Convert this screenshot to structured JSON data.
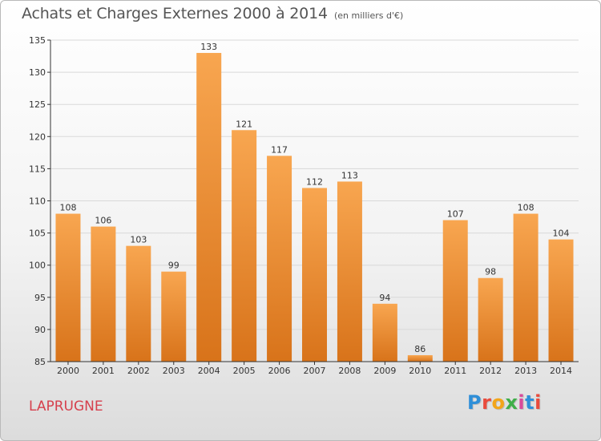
{
  "header": {
    "title": "Achats et Charges Externes 2000 à 2014",
    "subtitle": "(en milliers d'€)"
  },
  "footer": {
    "commune": "LAPRUGNE",
    "logo_letters": [
      "P",
      "r",
      "o",
      "x",
      "i",
      "t",
      "i"
    ],
    "logo_colors": [
      "#2f8fd8",
      "#e94b3c",
      "#f2a51a",
      "#3fae49",
      "#d84a9b",
      "#2f8fd8",
      "#e94b3c"
    ]
  },
  "colors": {
    "bar_top": "#f8a650",
    "bar_bottom": "#d8731a",
    "grid": "#d9d9d9",
    "axis": "#333333",
    "text": "#333333"
  },
  "chart_data": {
    "type": "bar",
    "title": "Achats et Charges Externes 2000 à 2014",
    "subtitle": "(en milliers d'€)",
    "xlabel": "",
    "ylabel": "",
    "categories": [
      "2000",
      "2001",
      "2002",
      "2003",
      "2004",
      "2005",
      "2006",
      "2007",
      "2008",
      "2009",
      "2010",
      "2011",
      "2012",
      "2013",
      "2014"
    ],
    "values": [
      108,
      106,
      103,
      99,
      133,
      121,
      117,
      112,
      113,
      94,
      86,
      107,
      98,
      108,
      104
    ],
    "ylim": [
      85,
      135
    ],
    "yticks": [
      85,
      90,
      95,
      100,
      105,
      110,
      115,
      120,
      125,
      130,
      135
    ],
    "grid": true,
    "data_labels": true
  }
}
